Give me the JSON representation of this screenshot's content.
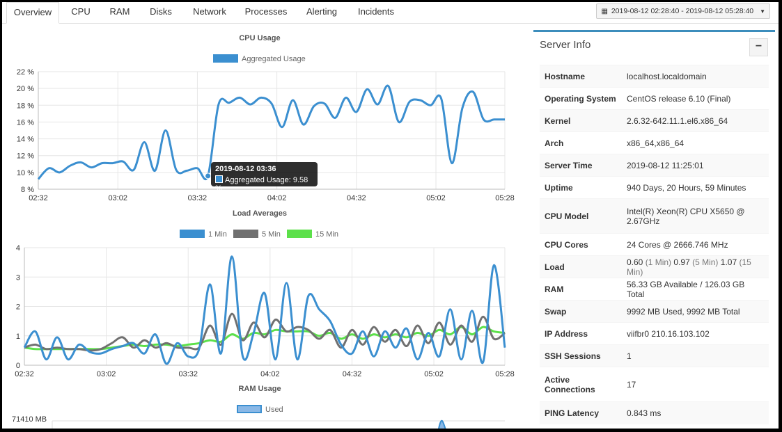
{
  "tabs": [
    {
      "label": "Overview",
      "active": true
    },
    {
      "label": "CPU"
    },
    {
      "label": "RAM"
    },
    {
      "label": "Disks"
    },
    {
      "label": "Network"
    },
    {
      "label": "Processes"
    },
    {
      "label": "Alerting"
    },
    {
      "label": "Incidents"
    }
  ],
  "date_range": "2019-08-12 02:28:40 - 2019-08-12 05:28:40",
  "colors": {
    "blue": "#3b8fd0",
    "gray": "#707070",
    "green": "#5ce04a",
    "accent": "#3c8dbc"
  },
  "cpu_chart": {
    "title": "CPU Usage",
    "legend": [
      "Aggregated Usage"
    ],
    "tooltip": {
      "title": "2019-08-12 03:36",
      "label": "Aggregated Usage: 9.58 %"
    }
  },
  "load_chart": {
    "title": "Load Averages",
    "legend": [
      "1 Min",
      "5 Min",
      "15 Min"
    ]
  },
  "ram_chart": {
    "title": "RAM Usage",
    "legend": [
      "Used"
    ],
    "ytick": "71410 MB"
  },
  "chart_data": [
    {
      "type": "line",
      "title": "CPU Usage",
      "x_ticks": [
        "02:32",
        "03:02",
        "03:32",
        "04:02",
        "04:32",
        "05:02",
        "05:28"
      ],
      "y_ticks": [
        "8 %",
        "10 %",
        "12 %",
        "14 %",
        "16 %",
        "18 %",
        "20 %",
        "22 %"
      ],
      "ylim": [
        8,
        22
      ],
      "xlim": [
        0,
        176
      ],
      "series": [
        {
          "name": "Aggregated Usage",
          "x": [
            0,
            4,
            8,
            12,
            16,
            20,
            24,
            28,
            32,
            36,
            40,
            44,
            48,
            52,
            56,
            60,
            64,
            68,
            72,
            76,
            80,
            84,
            88,
            92,
            96,
            100,
            104,
            108,
            112,
            116,
            120,
            124,
            128,
            132,
            136,
            140,
            144,
            148,
            152,
            156,
            160,
            164,
            168,
            172,
            176
          ],
          "y": [
            9.2,
            10.5,
            10.0,
            10.8,
            11.2,
            10.6,
            11.1,
            11.1,
            11.3,
            10.3,
            13.6,
            10.2,
            15.0,
            10.3,
            10.2,
            10.5,
            9.6,
            18.1,
            18.3,
            18.9,
            18.1,
            18.9,
            18.2,
            15.4,
            18.6,
            15.7,
            17.9,
            18.2,
            16.5,
            18.9,
            17.2,
            19.9,
            18.1,
            20.3,
            16.0,
            18.4,
            18.6,
            18.0,
            18.8,
            11.1,
            17.7,
            19.6,
            16.3,
            16.3,
            16.3
          ]
        }
      ]
    },
    {
      "type": "line",
      "title": "Load Averages",
      "x_ticks": [
        "02:32",
        "03:02",
        "03:32",
        "04:02",
        "04:32",
        "05:02",
        "05:28"
      ],
      "y_ticks": [
        "0",
        "1",
        "2",
        "3",
        "4"
      ],
      "ylim": [
        0,
        4
      ],
      "xlim": [
        0,
        176
      ],
      "series": [
        {
          "name": "1 Min",
          "x": [
            0,
            4,
            8,
            12,
            16,
            20,
            24,
            28,
            32,
            36,
            40,
            44,
            48,
            52,
            56,
            60,
            64,
            68,
            72,
            76,
            80,
            84,
            88,
            92,
            96,
            100,
            104,
            108,
            112,
            116,
            120,
            124,
            128,
            132,
            136,
            140,
            144,
            148,
            152,
            156,
            160,
            164,
            168,
            172,
            176
          ],
          "y": [
            0.6,
            1.15,
            0.2,
            0.95,
            0.2,
            0.7,
            0.45,
            0.4,
            0.55,
            0.65,
            0.75,
            0.4,
            1.05,
            0.05,
            0.75,
            0.3,
            0.55,
            2.75,
            0.4,
            3.7,
            0.3,
            1.1,
            2.45,
            0.2,
            2.8,
            0.2,
            2.35,
            1.9,
            1.5,
            0.7,
            0.4,
            1.15,
            0.3,
            1.15,
            0.6,
            1.25,
            0.2,
            1.1,
            0.3,
            1.9,
            0.2,
            1.85,
            0.1,
            3.4,
            0.6
          ]
        },
        {
          "name": "5 Min",
          "x": [
            0,
            4,
            8,
            12,
            16,
            20,
            24,
            28,
            32,
            36,
            40,
            44,
            48,
            52,
            56,
            60,
            64,
            68,
            72,
            76,
            80,
            84,
            88,
            92,
            96,
            100,
            104,
            108,
            112,
            116,
            120,
            124,
            128,
            132,
            136,
            140,
            144,
            148,
            152,
            156,
            160,
            164,
            168,
            172,
            176
          ],
          "y": [
            0.6,
            0.7,
            0.55,
            0.6,
            0.55,
            0.55,
            0.5,
            0.55,
            0.75,
            0.95,
            0.6,
            0.85,
            0.6,
            0.75,
            0.6,
            0.6,
            0.6,
            1.35,
            0.7,
            1.75,
            0.85,
            1.45,
            0.95,
            1.55,
            1.15,
            1.3,
            1.2,
            0.9,
            1.2,
            0.6,
            1.2,
            0.7,
            1.3,
            0.8,
            1.2,
            0.65,
            1.35,
            0.75,
            1.45,
            0.7,
            1.35,
            0.8,
            1.65,
            0.9,
            1.1
          ]
        },
        {
          "name": "15 Min",
          "x": [
            0,
            4,
            8,
            12,
            16,
            20,
            24,
            28,
            32,
            36,
            40,
            44,
            48,
            52,
            56,
            60,
            64,
            68,
            72,
            76,
            80,
            84,
            88,
            92,
            96,
            100,
            104,
            108,
            112,
            116,
            120,
            124,
            128,
            132,
            136,
            140,
            144,
            148,
            152,
            156,
            160,
            164,
            168,
            172,
            176
          ],
          "y": [
            0.6,
            0.55,
            0.55,
            0.55,
            0.55,
            0.55,
            0.55,
            0.55,
            0.6,
            0.65,
            0.7,
            0.65,
            0.7,
            0.7,
            0.65,
            0.7,
            0.75,
            0.85,
            0.8,
            1.05,
            0.9,
            1.1,
            1.05,
            1.2,
            1.15,
            1.15,
            1.15,
            1.0,
            1.1,
            0.9,
            1.05,
            0.9,
            1.05,
            0.95,
            1.05,
            0.95,
            1.1,
            1.0,
            1.2,
            1.05,
            1.3,
            1.05,
            1.3,
            1.15,
            1.1
          ]
        }
      ]
    }
  ],
  "server_info": {
    "title": "Server Info",
    "collapse_label": "−",
    "rows": [
      {
        "key": "Hostname",
        "value": "localhost.localdomain"
      },
      {
        "key": "Operating System",
        "value": "CentOS release 6.10 (Final)"
      },
      {
        "key": "Kernel",
        "value": "2.6.32-642.11.1.el6.x86_64"
      },
      {
        "key": "Arch",
        "value": "x86_64,x86_64"
      },
      {
        "key": "Server Time",
        "value": "2019-08-12 11:25:01"
      },
      {
        "key": "Uptime",
        "value": "940 Days, 20 Hours, 59 Minutes"
      },
      {
        "key": "CPU Model",
        "value": "Intel(R) Xeon(R) CPU X5650 @ 2.67GHz"
      },
      {
        "key": "CPU Cores",
        "value": "24 Cores @ 2666.746 MHz"
      },
      {
        "key": "Load",
        "v1": "0.60",
        "l1": "(1 Min)",
        "v5": "0.97",
        "l5": "(5 Min)",
        "v15": "1.07",
        "l15": "(15 Min)"
      },
      {
        "key": "RAM",
        "value": "56.33 GB Available / 126.03 GB Total"
      },
      {
        "key": "Swap",
        "value": "9992 MB Used, 9992 MB Total"
      },
      {
        "key": "IP Address",
        "value": "viifbr0 210.16.103.102"
      },
      {
        "key": "SSH Sessions",
        "value": "1"
      },
      {
        "key": "Active Connections",
        "value": "17"
      },
      {
        "key": "PING Latency",
        "value": "0.843 ms"
      }
    ]
  }
}
